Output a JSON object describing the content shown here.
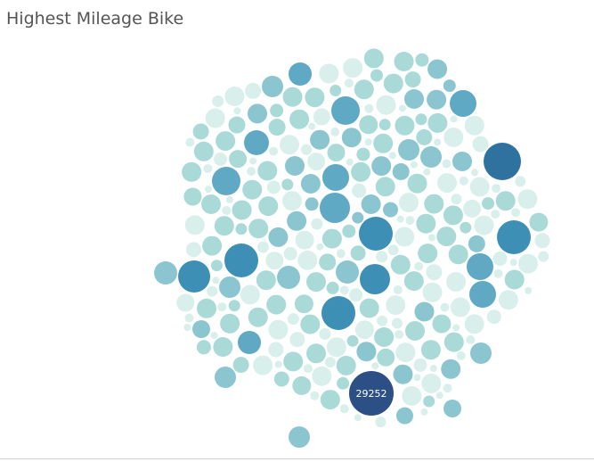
{
  "header": {
    "title": "Highest Mileage Bike"
  },
  "chart_data": {
    "type": "packed-bubble",
    "title": "Highest Mileage Bike",
    "series": [
      {
        "values": [
          29252
        ]
      }
    ],
    "labels": [
      "29252"
    ],
    "color_scale": [
      "#d8efec",
      "#a9dad7",
      "#8bc6d0",
      "#5fa9c4",
      "#3d8fb6",
      "#2f72a0",
      "#2c4f86"
    ]
  }
}
